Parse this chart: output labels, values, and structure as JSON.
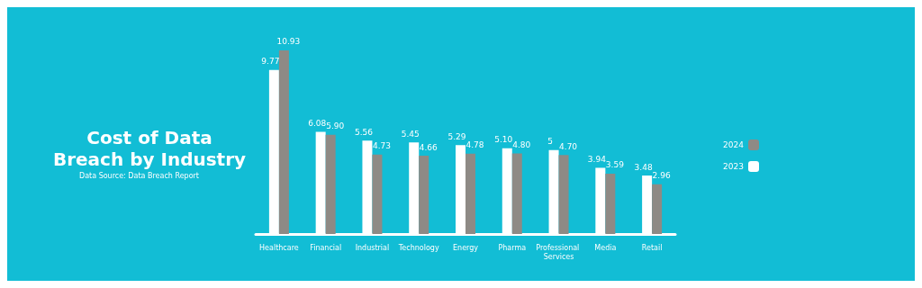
{
  "chart_data": {
    "type": "bar",
    "title": "Cost of Data\nBreach by Industry",
    "annotations": [
      "Data Source: Data Breach Report"
    ],
    "categories": [
      "Healthcare",
      "Financial",
      "Industrial",
      "Technology",
      "Energy",
      "Pharma",
      "Professional Services",
      "Media",
      "Retail"
    ],
    "series": [
      {
        "name": "2023",
        "color": "#ffffff",
        "values": [
          9.77,
          6.08,
          5.56,
          5.45,
          5.29,
          5.1,
          5,
          3.94,
          3.48
        ],
        "value_labels": [
          "9.77",
          "6.08",
          "5.56",
          "5.45",
          "5.29",
          "5.10",
          "5",
          "3.94",
          "3.48"
        ]
      },
      {
        "name": "2024",
        "color": "#8e8a85",
        "values": [
          10.93,
          5.9,
          4.73,
          4.66,
          4.78,
          4.8,
          4.7,
          3.59,
          2.96
        ],
        "value_labels": [
          "10.93",
          "5.90",
          "4.73",
          "4.66",
          "4.78",
          "4.80",
          "4.70",
          "3.59",
          "2.96"
        ]
      }
    ],
    "legend": "right"
  }
}
